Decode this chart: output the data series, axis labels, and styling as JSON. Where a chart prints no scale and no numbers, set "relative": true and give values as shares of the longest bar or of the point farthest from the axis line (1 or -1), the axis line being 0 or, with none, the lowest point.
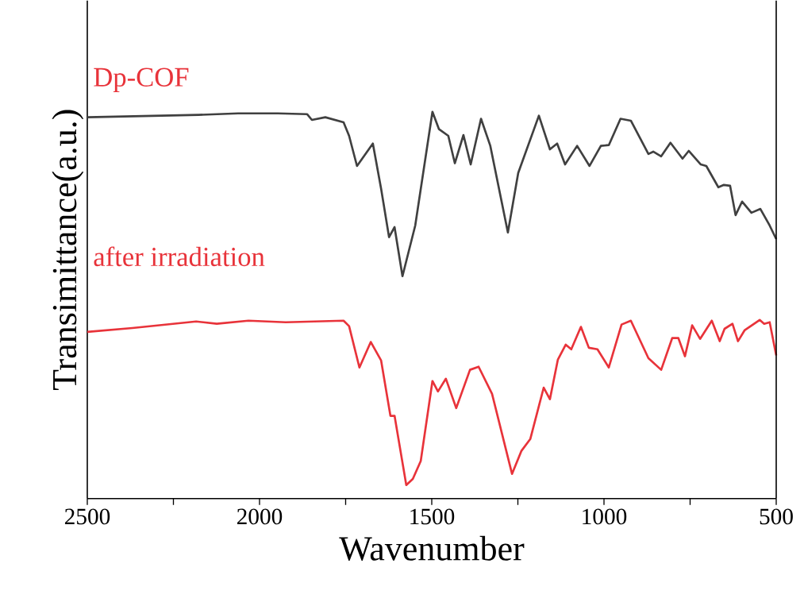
{
  "chart_data": {
    "type": "line",
    "relative": true,
    "xlabel": "Wavenumber",
    "ylabel": "Transimittance(a.u.)",
    "annotations": [
      "Dp-COF",
      "after irradiation"
    ],
    "xlim": [
      2500,
      500
    ],
    "xticks": [
      2500,
      {
        "value": 2250,
        "label": null
      },
      2000,
      {
        "value": 1750,
        "label": null
      },
      1500,
      {
        "value": 1250,
        "label": null
      },
      1000,
      {
        "value": 750,
        "label": null
      },
      500
    ],
    "line_style": "solid",
    "grid": false,
    "series": [
      {
        "color": "#404040",
        "x": [
          2500,
          2177,
          2062,
          1947,
          1862,
          1848,
          1809,
          1756,
          1740,
          1717,
          1671,
          1647,
          1624,
          1608,
          1585,
          1548,
          1498,
          1479,
          1452,
          1433,
          1408,
          1387,
          1357,
          1330,
          1279,
          1249,
          1189,
          1157,
          1136,
          1113,
          1078,
          1042,
          1009,
          986,
          952,
          922,
          871,
          857,
          834,
          807,
          772,
          754,
          719,
          703,
          668,
          652,
          634,
          618,
          599,
          572,
          546,
          519,
          500
        ],
        "values": [
          0.986,
          0.992,
          0.996,
          0.996,
          0.994,
          0.979,
          0.986,
          0.973,
          0.938,
          0.86,
          0.918,
          0.801,
          0.676,
          0.702,
          0.575,
          0.706,
          1.0,
          0.955,
          0.938,
          0.867,
          0.94,
          0.864,
          0.982,
          0.912,
          0.688,
          0.842,
          0.99,
          0.903,
          0.918,
          0.864,
          0.912,
          0.86,
          0.912,
          0.914,
          0.982,
          0.977,
          0.891,
          0.897,
          0.885,
          0.92,
          0.879,
          0.899,
          0.864,
          0.86,
          0.805,
          0.811,
          0.809,
          0.733,
          0.768,
          0.739,
          0.749,
          0.706,
          0.671
        ]
      },
      {
        "color": "#e8333a",
        "x": [
          2500,
          2369,
          2184,
          2124,
          2032,
          1924,
          1756,
          1740,
          1710,
          1677,
          1647,
          1620,
          1608,
          1574,
          1555,
          1532,
          1498,
          1482,
          1459,
          1429,
          1389,
          1364,
          1325,
          1267,
          1240,
          1214,
          1175,
          1157,
          1134,
          1111,
          1095,
          1067,
          1044,
          1019,
          986,
          949,
          922,
          871,
          834,
          802,
          784,
          765,
          744,
          721,
          687,
          664,
          650,
          627,
          611,
          592,
          548,
          535,
          519,
          500
        ],
        "values": [
          0.431,
          0.441,
          0.458,
          0.452,
          0.46,
          0.456,
          0.46,
          0.446,
          0.339,
          0.405,
          0.357,
          0.214,
          0.214,
          0.035,
          0.051,
          0.097,
          0.304,
          0.277,
          0.31,
          0.234,
          0.333,
          0.341,
          0.271,
          0.064,
          0.123,
          0.154,
          0.287,
          0.257,
          0.359,
          0.398,
          0.386,
          0.444,
          0.39,
          0.386,
          0.339,
          0.45,
          0.46,
          0.363,
          0.333,
          0.415,
          0.415,
          0.368,
          0.448,
          0.413,
          0.46,
          0.407,
          0.439,
          0.452,
          0.407,
          0.435,
          0.462,
          0.452,
          0.456,
          0.37
        ]
      }
    ]
  }
}
